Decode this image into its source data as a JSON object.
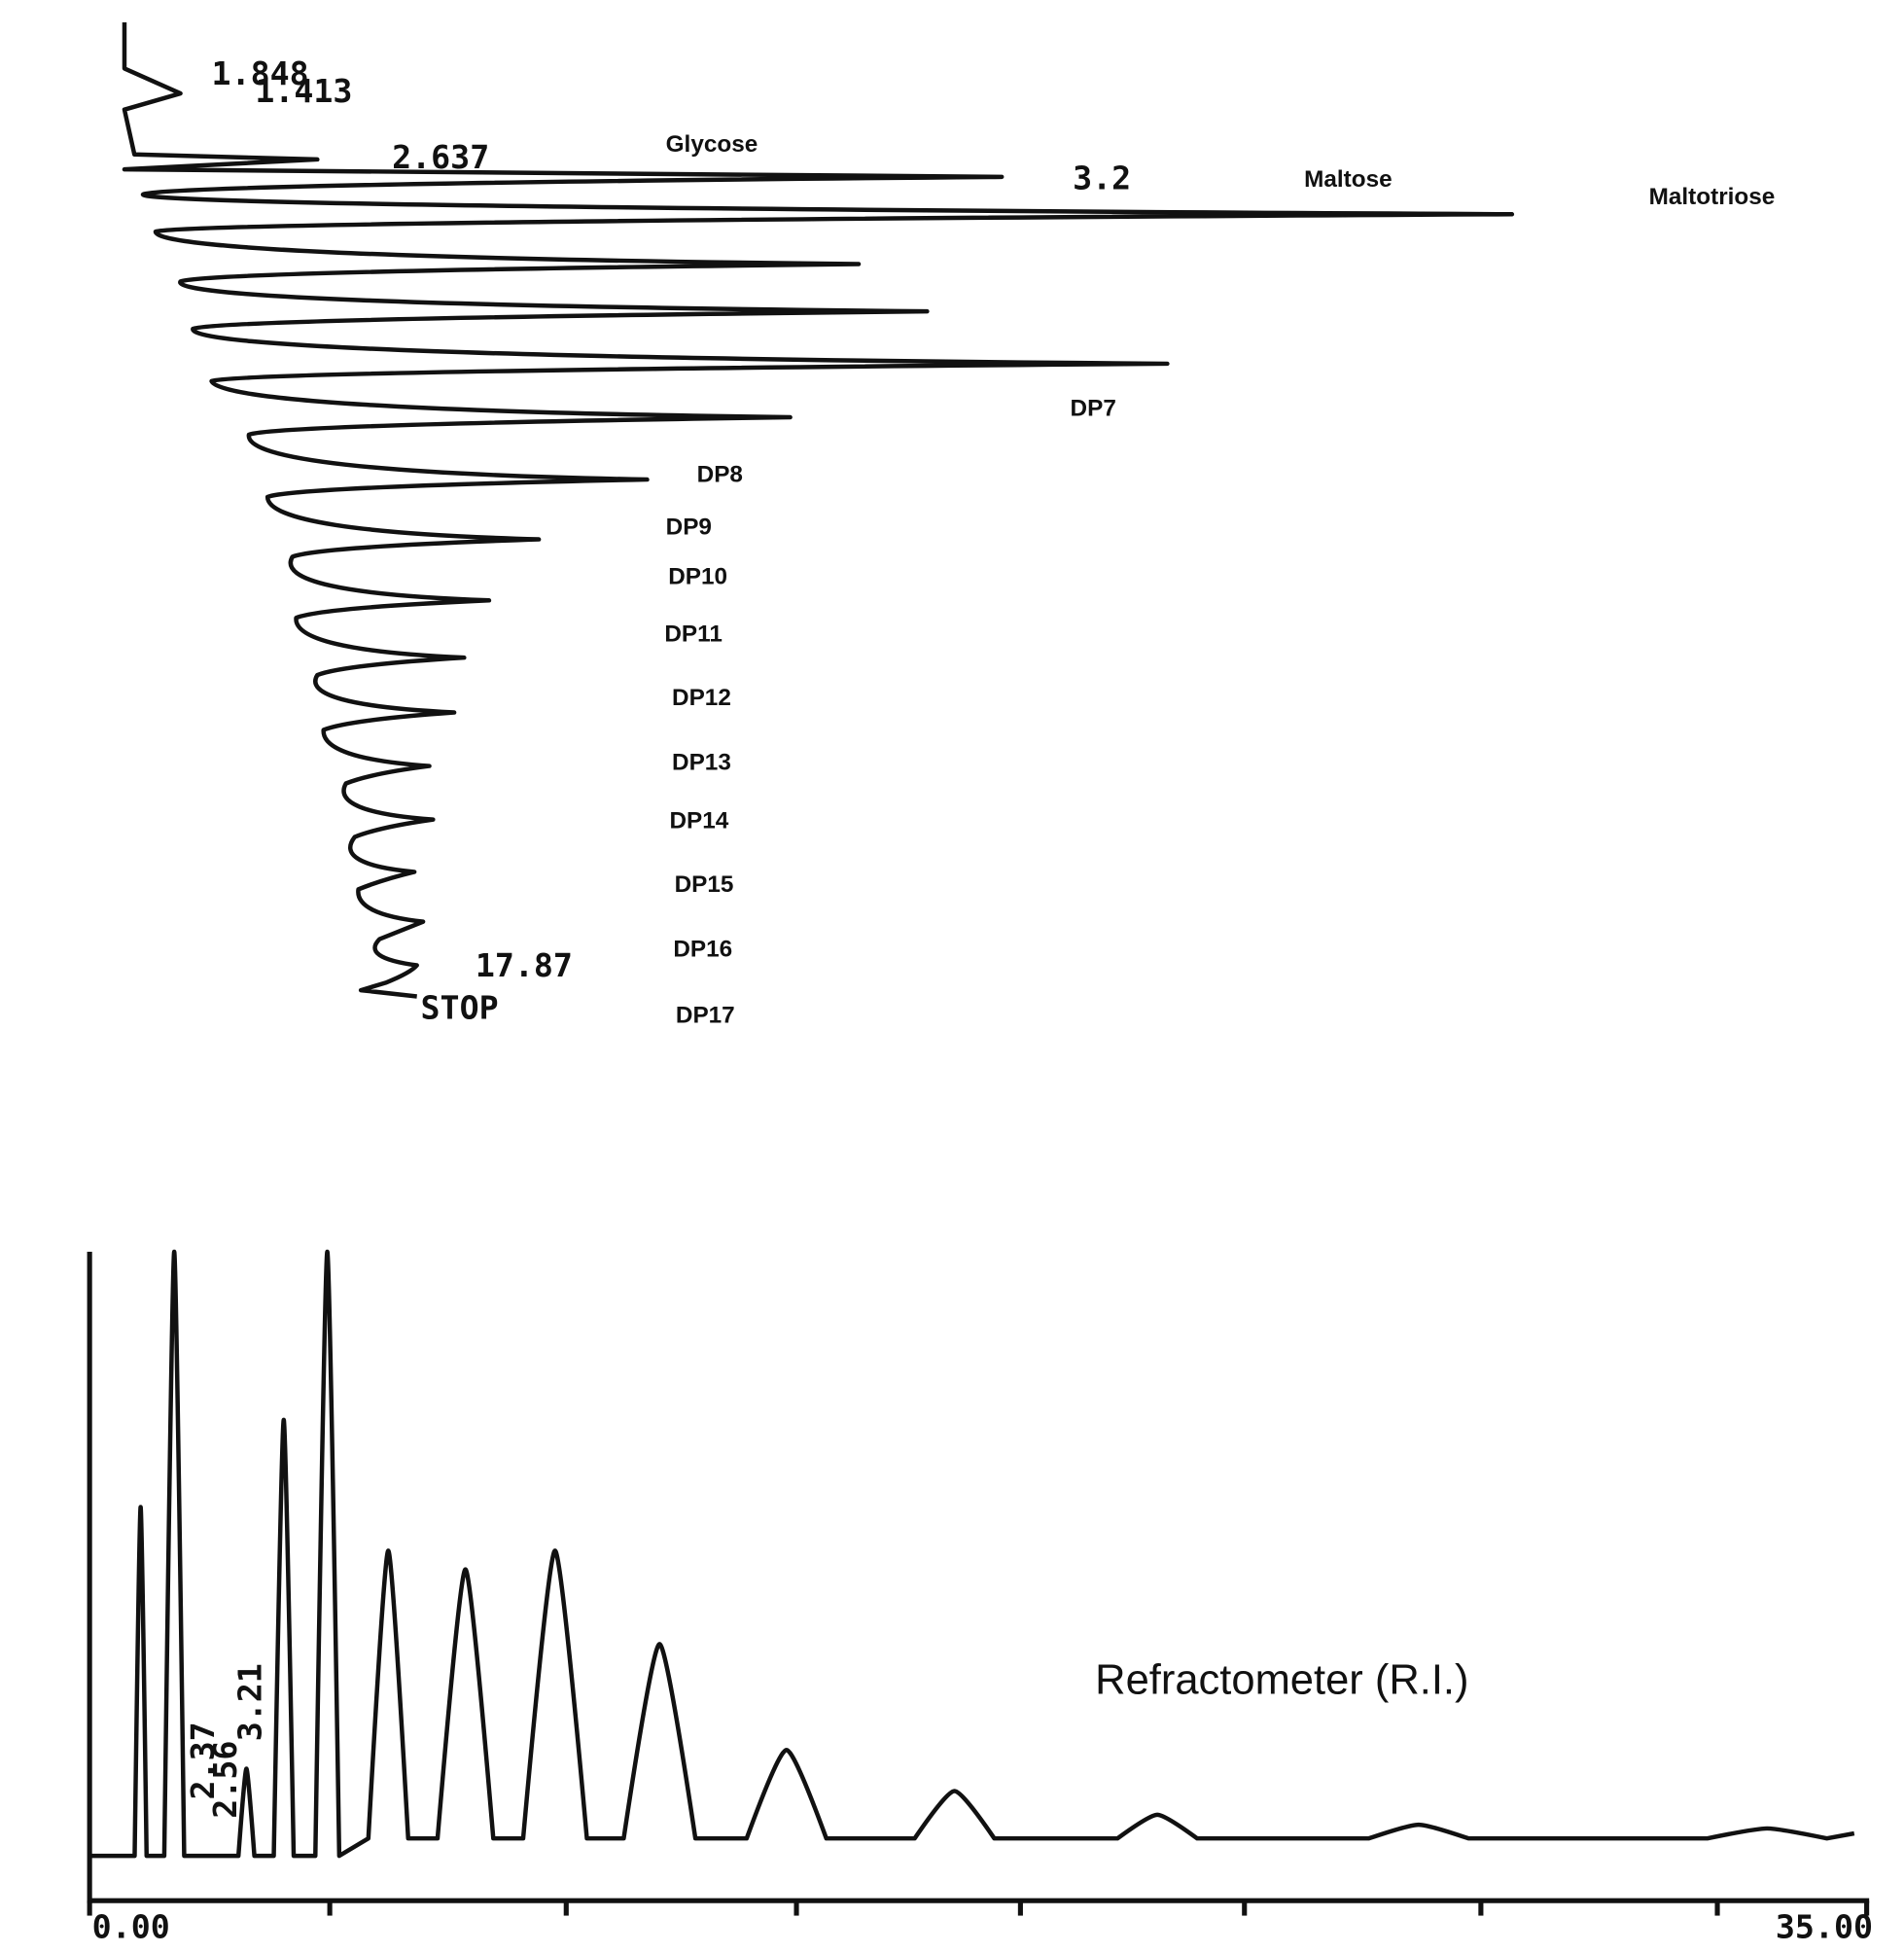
{
  "top_trace": {
    "retention_labels": [
      "1.848",
      "1.413",
      "2.637",
      "3.2",
      "17.87"
    ],
    "stop_label": "STOP",
    "peak_labels": [
      "Glycose",
      "Maltose",
      "Maltotriose",
      "DP7",
      "DP8",
      "DP9",
      "DP10",
      "DP11",
      "DP12",
      "DP13",
      "DP14",
      "DP15",
      "DP16",
      "DP17"
    ]
  },
  "bottom_trace": {
    "retention_labels": [
      "2.37",
      "2.56",
      "3.21"
    ],
    "detector_label": "Refractometer (R.I.)",
    "x_axis": {
      "start": "0.00",
      "end": "35.00"
    }
  }
}
